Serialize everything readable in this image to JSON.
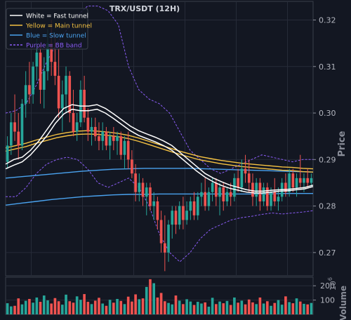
{
  "chart_data": [
    {
      "type": "candlestick",
      "title": "TRX/USDT (12H)",
      "ylabel": "Price",
      "ylim": [
        0.265,
        0.324
      ],
      "yticks": [
        0.27,
        0.28,
        0.29,
        0.3,
        0.31,
        0.32
      ],
      "ytick_labels": [
        "0.27",
        "0.28",
        "0.29",
        "0.30",
        "0.31",
        "0.32"
      ],
      "grid": true,
      "legend_placement": "top-left",
      "legend": [
        {
          "label": "White = Fast tunnel",
          "color": "#ffffff",
          "style": "solid"
        },
        {
          "label": "Yellow = Main tunnel",
          "color": "#f5c242",
          "style": "solid"
        },
        {
          "label": "Blue = Slow tunnel",
          "color": "#4aa3f0",
          "style": "solid"
        },
        {
          "label": "Purple = BB band",
          "color": "#8a5cf5",
          "style": "dashed"
        }
      ],
      "colors": {
        "up": "#26a69a",
        "down": "#ef5350",
        "background": "#131722",
        "grid": "#262b38"
      },
      "candles": [
        [
          0.2895,
          0.295,
          0.288,
          0.293
        ],
        [
          0.293,
          0.3,
          0.291,
          0.298
        ],
        [
          0.298,
          0.304,
          0.294,
          0.296
        ],
        [
          0.296,
          0.3,
          0.29,
          0.293
        ],
        [
          0.293,
          0.303,
          0.292,
          0.302
        ],
        [
          0.302,
          0.309,
          0.299,
          0.306
        ],
        [
          0.306,
          0.311,
          0.302,
          0.304
        ],
        [
          0.304,
          0.311,
          0.302,
          0.31
        ],
        [
          0.31,
          0.316,
          0.307,
          0.313
        ],
        [
          0.313,
          0.315,
          0.302,
          0.305
        ],
        [
          0.305,
          0.312,
          0.301,
          0.309
        ],
        [
          0.309,
          0.318,
          0.307,
          0.315
        ],
        [
          0.315,
          0.32,
          0.308,
          0.311
        ],
        [
          0.311,
          0.317,
          0.306,
          0.308
        ],
        [
          0.308,
          0.314,
          0.299,
          0.301
        ],
        [
          0.301,
          0.307,
          0.296,
          0.304
        ],
        [
          0.304,
          0.31,
          0.3,
          0.308
        ],
        [
          0.308,
          0.309,
          0.298,
          0.3
        ],
        [
          0.3,
          0.305,
          0.295,
          0.296
        ],
        [
          0.296,
          0.3,
          0.294,
          0.298
        ],
        [
          0.298,
          0.307,
          0.297,
          0.305
        ],
        [
          0.305,
          0.308,
          0.298,
          0.299
        ],
        [
          0.299,
          0.301,
          0.294,
          0.296
        ],
        [
          0.296,
          0.299,
          0.293,
          0.297
        ],
        [
          0.297,
          0.299,
          0.294,
          0.295
        ],
        [
          0.295,
          0.298,
          0.292,
          0.294
        ],
        [
          0.294,
          0.298,
          0.292,
          0.296
        ],
        [
          0.296,
          0.297,
          0.292,
          0.293
        ],
        [
          0.293,
          0.296,
          0.29,
          0.295
        ],
        [
          0.295,
          0.297,
          0.292,
          0.294
        ],
        [
          0.294,
          0.296,
          0.291,
          0.295
        ],
        [
          0.295,
          0.296,
          0.29,
          0.291
        ],
        [
          0.291,
          0.295,
          0.288,
          0.294
        ],
        [
          0.294,
          0.296,
          0.288,
          0.29
        ],
        [
          0.29,
          0.292,
          0.286,
          0.287
        ],
        [
          0.287,
          0.289,
          0.281,
          0.283
        ],
        [
          0.283,
          0.287,
          0.281,
          0.285
        ],
        [
          0.285,
          0.286,
          0.28,
          0.282
        ],
        [
          0.282,
          0.285,
          0.278,
          0.284
        ],
        [
          0.284,
          0.285,
          0.279,
          0.28
        ],
        [
          0.28,
          0.283,
          0.277,
          0.281
        ],
        [
          0.281,
          0.282,
          0.275,
          0.277
        ],
        [
          0.277,
          0.279,
          0.27,
          0.272
        ],
        [
          0.272,
          0.278,
          0.266,
          0.27
        ],
        [
          0.27,
          0.277,
          0.268,
          0.276
        ],
        [
          0.276,
          0.28,
          0.273,
          0.279
        ],
        [
          0.279,
          0.28,
          0.274,
          0.276
        ],
        [
          0.276,
          0.281,
          0.275,
          0.28
        ],
        [
          0.28,
          0.282,
          0.275,
          0.277
        ],
        [
          0.277,
          0.281,
          0.276,
          0.279
        ],
        [
          0.279,
          0.282,
          0.277,
          0.281
        ],
        [
          0.281,
          0.283,
          0.277,
          0.278
        ],
        [
          0.278,
          0.283,
          0.277,
          0.282
        ],
        [
          0.282,
          0.285,
          0.28,
          0.283
        ],
        [
          0.283,
          0.286,
          0.279,
          0.28
        ],
        [
          0.28,
          0.284,
          0.279,
          0.283
        ],
        [
          0.283,
          0.286,
          0.281,
          0.285
        ],
        [
          0.285,
          0.286,
          0.28,
          0.282
        ],
        [
          0.282,
          0.285,
          0.278,
          0.284
        ],
        [
          0.284,
          0.285,
          0.279,
          0.281
        ],
        [
          0.281,
          0.284,
          0.28,
          0.283
        ],
        [
          0.283,
          0.285,
          0.28,
          0.282
        ],
        [
          0.282,
          0.287,
          0.281,
          0.286
        ],
        [
          0.286,
          0.288,
          0.283,
          0.284
        ],
        [
          0.284,
          0.29,
          0.283,
          0.288
        ],
        [
          0.288,
          0.291,
          0.285,
          0.287
        ],
        [
          0.287,
          0.29,
          0.283,
          0.285
        ],
        [
          0.285,
          0.287,
          0.28,
          0.282
        ],
        [
          0.282,
          0.286,
          0.28,
          0.285
        ],
        [
          0.285,
          0.286,
          0.279,
          0.281
        ],
        [
          0.281,
          0.285,
          0.28,
          0.284
        ],
        [
          0.284,
          0.285,
          0.279,
          0.28
        ],
        [
          0.28,
          0.284,
          0.279,
          0.283
        ],
        [
          0.283,
          0.286,
          0.28,
          0.281
        ],
        [
          0.281,
          0.284,
          0.279,
          0.282
        ],
        [
          0.282,
          0.286,
          0.281,
          0.285
        ],
        [
          0.285,
          0.287,
          0.282,
          0.283
        ],
        [
          0.283,
          0.288,
          0.282,
          0.287
        ],
        [
          0.287,
          0.288,
          0.283,
          0.284
        ],
        [
          0.284,
          0.287,
          0.282,
          0.286
        ],
        [
          0.286,
          0.291,
          0.284,
          0.285
        ],
        [
          0.285,
          0.287,
          0.283,
          0.286
        ],
        [
          0.286,
          0.288,
          0.284,
          0.285
        ],
        [
          0.285,
          0.287,
          0.284,
          0.286
        ]
      ],
      "fast_tunnel": [
        [
          0.289,
          0.29,
          0.2905,
          0.292,
          0.294,
          0.2965,
          0.299,
          0.301,
          0.3018,
          0.3015,
          0.3015,
          0.3018,
          0.301,
          0.2998,
          0.2985,
          0.2972,
          0.2962,
          0.2955,
          0.2948,
          0.294,
          0.293,
          0.2915,
          0.29,
          0.2885,
          0.287,
          0.286,
          0.2852,
          0.2845,
          0.284,
          0.2835,
          0.2832,
          0.2832,
          0.2834,
          0.2835,
          0.2836,
          0.2838,
          0.284,
          0.2845
        ],
        [
          0.288,
          0.2888,
          0.2895,
          0.291,
          0.293,
          0.2952,
          0.2978,
          0.2998,
          0.3008,
          0.3005,
          0.3005,
          0.3008,
          0.3,
          0.2988,
          0.2975,
          0.2962,
          0.2952,
          0.2945,
          0.2938,
          0.293,
          0.292,
          0.2905,
          0.289,
          0.2875,
          0.2862,
          0.2852,
          0.2844,
          0.2838,
          0.2834,
          0.283,
          0.2828,
          0.2828,
          0.283,
          0.2832,
          0.2833,
          0.2835,
          0.2837,
          0.2842
        ]
      ],
      "main_tunnel": [
        [
          0.2925,
          0.293,
          0.2935,
          0.2942,
          0.2948,
          0.2954,
          0.2958,
          0.2961,
          0.2962,
          0.2961,
          0.2959,
          0.2956,
          0.2952,
          0.2946,
          0.2939,
          0.2932,
          0.2925,
          0.2918,
          0.2912,
          0.2906,
          0.2902,
          0.2898,
          0.2895,
          0.2892,
          0.289,
          0.2888,
          0.2886,
          0.2884,
          0.2883,
          0.2881,
          0.288
        ],
        [
          0.2918,
          0.2923,
          0.2928,
          0.2935,
          0.2941,
          0.2947,
          0.2951,
          0.2954,
          0.2955,
          0.2954,
          0.2952,
          0.2949,
          0.2945,
          0.2939,
          0.2932,
          0.2925,
          0.2918,
          0.2911,
          0.2905,
          0.2899,
          0.2895,
          0.2891,
          0.2888,
          0.2885,
          0.2883,
          0.2881,
          0.2879,
          0.2877,
          0.2876,
          0.2874,
          0.2873
        ]
      ],
      "slow_tunnel": [
        [
          0.286,
          0.2863,
          0.2866,
          0.2869,
          0.2872,
          0.2875,
          0.2877,
          0.2879,
          0.288,
          0.2881,
          0.2881,
          0.2881,
          0.2881,
          0.288,
          0.2879,
          0.2878,
          0.2877,
          0.2876,
          0.2875,
          0.2874,
          0.2873
        ],
        [
          0.2802,
          0.2806,
          0.281,
          0.2814,
          0.2817,
          0.282,
          0.2822,
          0.2824,
          0.2825,
          0.2825,
          0.2826,
          0.2826,
          0.2826,
          0.2826,
          0.2826,
          0.2826,
          0.2826,
          0.2826,
          0.2827,
          0.2827,
          0.2827
        ]
      ],
      "bb_band": [
        [
          0.3,
          0.3005,
          0.302,
          0.306,
          0.311,
          0.315,
          0.318,
          0.321,
          0.323,
          0.323,
          0.322,
          0.319,
          0.31,
          0.305,
          0.303,
          0.302,
          0.3,
          0.296,
          0.292,
          0.29,
          0.288,
          0.287,
          0.288,
          0.289,
          0.29,
          0.291,
          0.2905,
          0.29,
          0.2895,
          0.29,
          0.29
        ],
        [
          0.282,
          0.282,
          0.284,
          0.287,
          0.289,
          0.29,
          0.2905,
          0.29,
          0.288,
          0.285,
          0.284,
          0.285,
          0.286,
          0.284,
          0.28,
          0.274,
          0.27,
          0.268,
          0.27,
          0.273,
          0.275,
          0.276,
          0.277,
          0.2775,
          0.2778,
          0.2782,
          0.2785,
          0.2783,
          0.2785,
          0.2787,
          0.279
        ]
      ]
    },
    {
      "type": "bar",
      "ylabel": "Volume",
      "unit_exponent": "10^6",
      "yticks": [
        100,
        200
      ],
      "ytick_labels": [
        "100",
        "200"
      ],
      "ylim": [
        0,
        260
      ],
      "values": [
        78,
        56,
        60,
        112,
        70,
        95,
        108,
        82,
        118,
        88,
        132,
        98,
        76,
        114,
        92,
        68,
        138,
        92,
        82,
        126,
        102,
        142,
        88,
        72,
        96,
        116,
        76,
        60,
        102,
        82,
        108,
        94,
        72,
        124,
        90,
        140,
        106,
        112,
        192,
        246,
        218,
        118,
        150,
        92,
        80,
        70,
        132,
        96,
        72,
        106,
        90,
        66,
        88,
        76,
        84,
        54,
        116,
        72,
        90,
        78,
        94,
        66,
        118,
        82,
        96,
        70,
        104,
        84,
        72,
        118,
        76,
        92,
        60,
        80,
        100,
        68,
        126,
        86,
        78,
        112,
        90,
        74,
        70,
        80
      ],
      "colors": {
        "up": "#26a69a",
        "down": "#ef5350"
      }
    }
  ]
}
